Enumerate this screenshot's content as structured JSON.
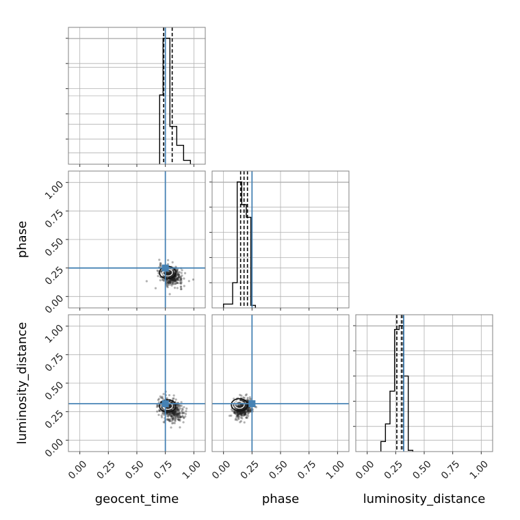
{
  "chart_data": {
    "type": "corner",
    "parameters": [
      "geocent_time",
      "phase",
      "luminosity_distance"
    ],
    "axis_range": [
      -0.1,
      1.1
    ],
    "ticks": [
      0.0,
      0.25,
      0.5,
      0.75,
      1.0
    ],
    "tick_labels": [
      "0.00",
      "0.25",
      "0.50",
      "0.75",
      "1.00"
    ],
    "grid": true,
    "truths": {
      "geocent_time": 0.75,
      "phase": 0.25,
      "luminosity_distance": 0.32
    },
    "colors": {
      "truth": "#4682b4",
      "hist": "#000000",
      "grid": "#b0b0b0",
      "frame": "#808080",
      "points": "#222222"
    },
    "histograms": [
      {
        "parameter": "geocent_time",
        "bin_edges": [
          0.7,
          0.73,
          0.76,
          0.79,
          0.82,
          0.85,
          0.88,
          0.91,
          0.94,
          0.97
        ],
        "counts": [
          0.55,
          1.0,
          1.0,
          0.3,
          0.3,
          0.15,
          0.15,
          0.03,
          0.03
        ],
        "quantiles": [
          0.735,
          0.75,
          0.81
        ]
      },
      {
        "parameter": "phase",
        "bin_edges": [
          0.0,
          0.04,
          0.08,
          0.12,
          0.16,
          0.2,
          0.24,
          0.28
        ],
        "counts": [
          0.03,
          0.03,
          0.2,
          1.0,
          0.82,
          0.72,
          0.02
        ],
        "quantiles": [
          0.15,
          0.18,
          0.21
        ]
      },
      {
        "parameter": "luminosity_distance",
        "bin_edges": [
          0.12,
          0.16,
          0.2,
          0.24,
          0.28,
          0.32,
          0.36,
          0.4
        ],
        "counts": [
          0.08,
          0.22,
          0.48,
          0.97,
          1.0,
          0.6,
          0.01
        ],
        "quantiles": [
          0.26,
          0.3,
          0.315
        ]
      }
    ],
    "scatter_panels": [
      {
        "x": "geocent_time",
        "y": "phase",
        "center": [
          0.8,
          0.18
        ],
        "spread": [
          0.05,
          0.04
        ],
        "tilt": -0.5
      },
      {
        "x": "geocent_time",
        "y": "luminosity_distance",
        "center": [
          0.8,
          0.27
        ],
        "spread": [
          0.05,
          0.05
        ],
        "tilt": -0.5
      },
      {
        "x": "phase",
        "y": "luminosity_distance",
        "center": [
          0.17,
          0.28
        ],
        "spread": [
          0.04,
          0.04
        ],
        "tilt": 0.3
      }
    ]
  }
}
